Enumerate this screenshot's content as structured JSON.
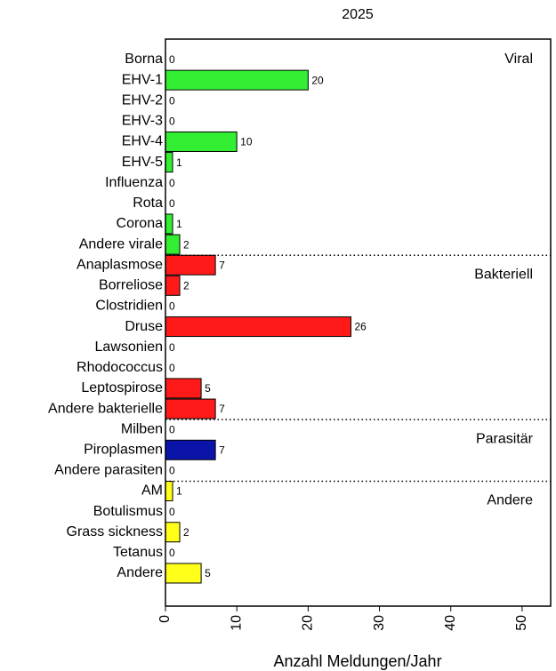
{
  "chart_data": {
    "type": "bar",
    "orientation": "horizontal",
    "title": "2025",
    "x_label": "Anzahl Meldungen/Jahr",
    "categories": [
      "Borna",
      "EHV-1",
      "EHV-2",
      "EHV-3",
      "EHV-4",
      "EHV-5",
      "Influenza",
      "Rota",
      "Corona",
      "Andere virale",
      "Anaplasmose",
      "Borreliose",
      "Clostridien",
      "Druse",
      "Lawsonien",
      "Rhodococcus",
      "Leptospirose",
      "Andere bakterielle",
      "Milben",
      "Piroplasmen",
      "Andere parasiten",
      "AM",
      "Botulismus",
      "Grass sickness",
      "Tetanus",
      "Andere"
    ],
    "series": [
      {
        "name": "Viral",
        "color": "#33ee33",
        "values": [
          0,
          20,
          0,
          0,
          10,
          1,
          0,
          0,
          1,
          2,
          null,
          null,
          null,
          null,
          null,
          null,
          null,
          null,
          null,
          null,
          null,
          null,
          null,
          null,
          null,
          null
        ]
      },
      {
        "name": "Bakteriell",
        "color": "#ff1a1a",
        "values": [
          null,
          null,
          null,
          null,
          null,
          null,
          null,
          null,
          null,
          null,
          7,
          2,
          0,
          26,
          0,
          0,
          5,
          7,
          null,
          null,
          null,
          null,
          null,
          null,
          null,
          null
        ]
      },
      {
        "name": "Parasitär",
        "color": "#0a14a8",
        "values": [
          null,
          null,
          null,
          null,
          null,
          null,
          null,
          null,
          null,
          null,
          null,
          null,
          null,
          null,
          null,
          null,
          null,
          null,
          0,
          7,
          0,
          null,
          null,
          null,
          null,
          null
        ]
      },
      {
        "name": "Andere",
        "color": "#ffff1a",
        "values": [
          null,
          null,
          null,
          null,
          null,
          null,
          null,
          null,
          null,
          null,
          null,
          null,
          null,
          null,
          null,
          null,
          null,
          null,
          null,
          null,
          null,
          1,
          0,
          2,
          0,
          5
        ]
      }
    ],
    "xlim": [
      0,
      54
    ],
    "xticks": [
      0,
      10,
      20,
      30,
      40,
      50
    ]
  }
}
